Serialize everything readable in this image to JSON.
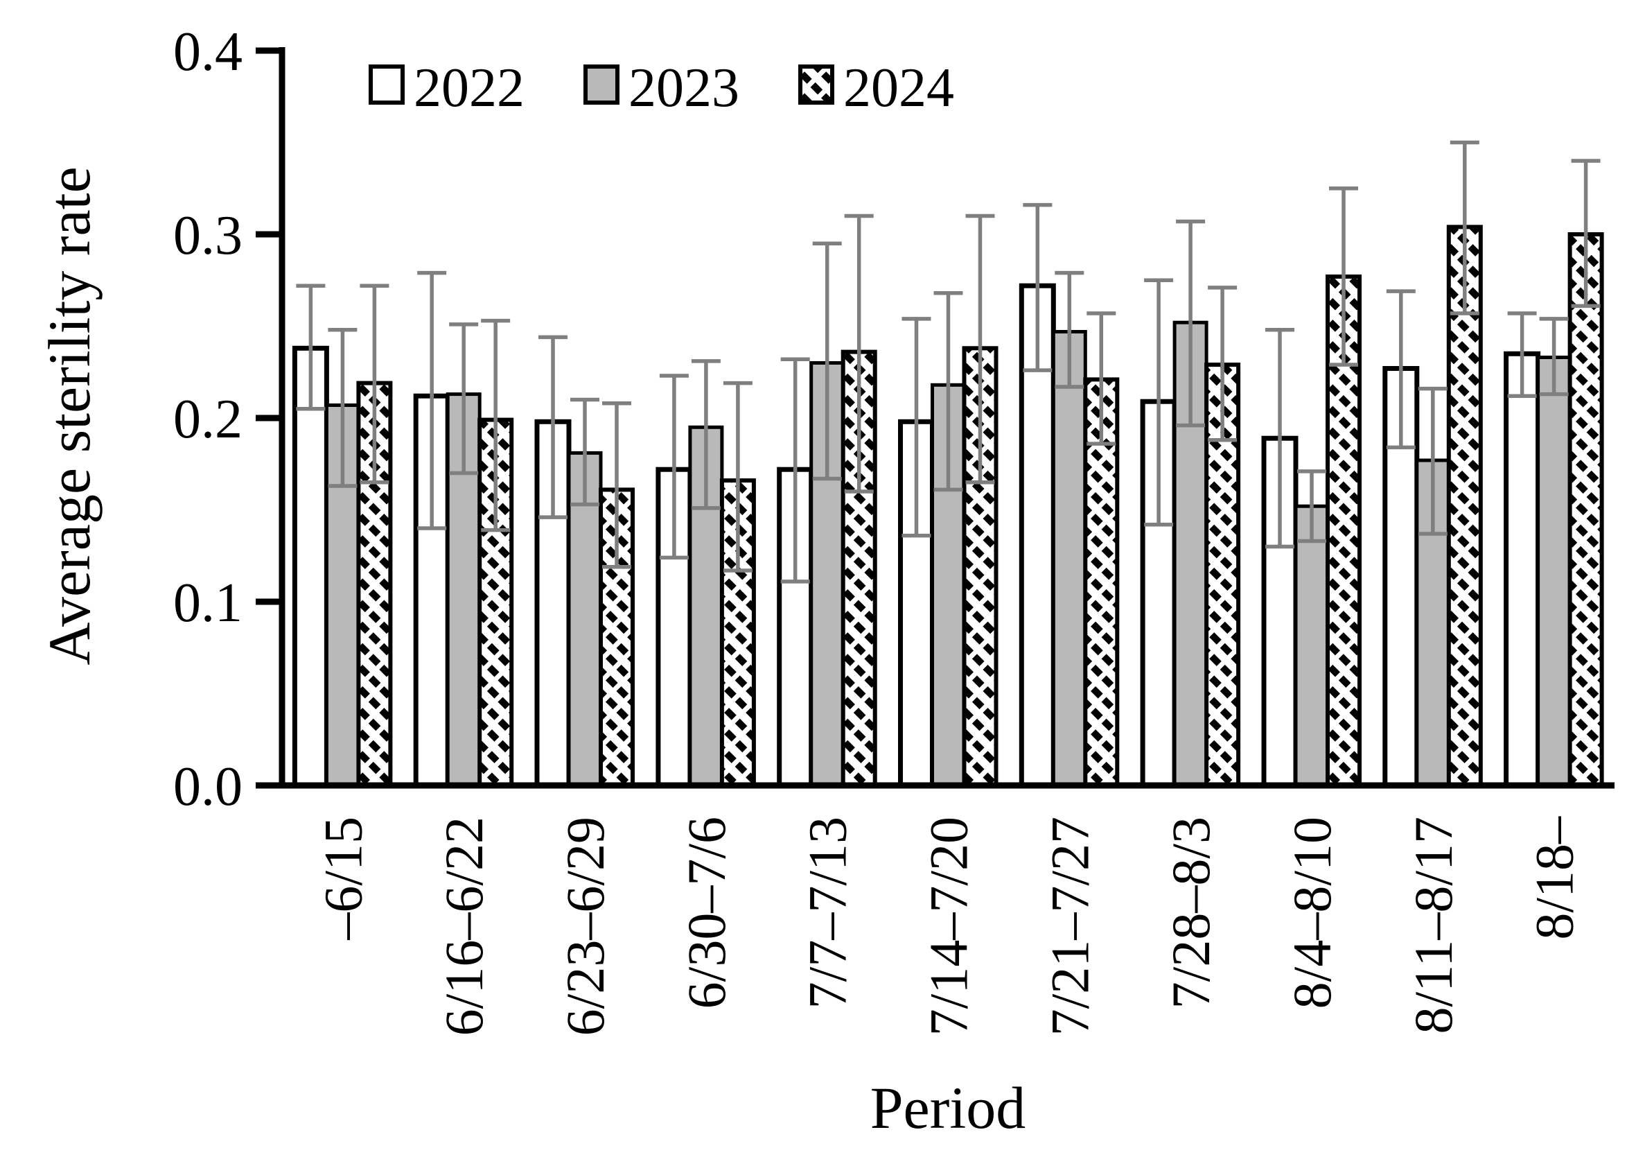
{
  "chart_data": {
    "type": "bar",
    "title": "",
    "xlabel": "Period",
    "ylabel": "Average sterility rate",
    "ylim": [
      0,
      0.4
    ],
    "ytick_labels": [
      "0.0",
      "0.1",
      "0.2",
      "0.3",
      "0.4"
    ],
    "grid": false,
    "legend_position": "top-left-inside",
    "error_bar_color": "#7f7f7f",
    "axis_color": "#000000",
    "gray_fill": "#b9b9b9",
    "hatch_style": "diagonal-dashed",
    "categories": [
      "–6/15",
      "6/16–6/22",
      "6/23–6/29",
      "6/30–7/6",
      "7/7–7/13",
      "7/14–7/20",
      "7/21–7/27",
      "7/28–8/3",
      "8/4–8/10",
      "8/11–8/17",
      "8/18–"
    ],
    "series": [
      {
        "name": "2022",
        "fill": "white",
        "values": [
          0.238,
          0.212,
          0.198,
          0.172,
          0.172,
          0.198,
          0.272,
          0.209,
          0.189,
          0.227,
          0.235
        ],
        "err_high": [
          0.272,
          0.279,
          0.244,
          0.223,
          0.232,
          0.254,
          0.316,
          0.275,
          0.248,
          0.269,
          0.257
        ],
        "err_low": [
          0.205,
          0.14,
          0.146,
          0.124,
          0.111,
          0.136,
          0.226,
          0.142,
          0.13,
          0.184,
          0.212
        ]
      },
      {
        "name": "2023",
        "fill": "gray",
        "values": [
          0.207,
          0.213,
          0.181,
          0.195,
          0.23,
          0.218,
          0.247,
          0.252,
          0.152,
          0.177,
          0.233
        ],
        "err_high": [
          0.248,
          0.251,
          0.21,
          0.231,
          0.295,
          0.268,
          0.279,
          0.307,
          0.171,
          0.216,
          0.254
        ],
        "err_low": [
          0.163,
          0.17,
          0.153,
          0.151,
          0.167,
          0.161,
          0.217,
          0.196,
          0.133,
          0.137,
          0.213
        ]
      },
      {
        "name": "2024",
        "fill": "hatch",
        "values": [
          0.219,
          0.199,
          0.161,
          0.166,
          0.236,
          0.238,
          0.221,
          0.229,
          0.277,
          0.304,
          0.3
        ],
        "err_high": [
          0.272,
          0.253,
          0.208,
          0.219,
          0.31,
          0.31,
          0.257,
          0.271,
          0.325,
          0.35,
          0.34
        ],
        "err_low": [
          0.165,
          0.139,
          0.119,
          0.117,
          0.16,
          0.165,
          0.186,
          0.188,
          0.229,
          0.257,
          0.261
        ]
      }
    ]
  }
}
